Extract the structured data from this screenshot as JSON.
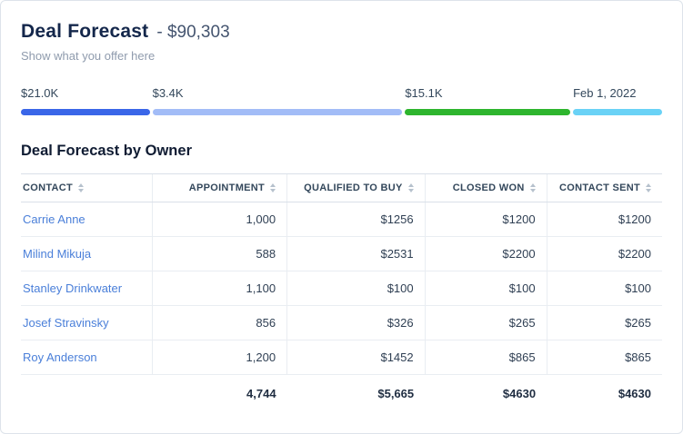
{
  "header": {
    "title": "Deal Forecast",
    "amount": "- $90,303",
    "subtitle": "Show what you offer here"
  },
  "progress": {
    "segments": [
      {
        "label": "$21.0K",
        "color": "#3a66e8",
        "width_pct": 20.1
      },
      {
        "label": "$3.4K",
        "color": "#a2bcf7",
        "width_pct": 39.0
      },
      {
        "label": "$15.1K",
        "color": "#2eb52e",
        "width_pct": 25.8
      },
      {
        "label": "Feb 1, 2022",
        "color": "#6ad2f6",
        "width_pct": 13.9
      }
    ]
  },
  "table": {
    "section_title": "Deal Forecast by Owner",
    "columns": [
      "CONTACT",
      "APPOINTMENT",
      "QUALIFIED TO BUY",
      "CLOSED WON",
      "CONTACT SENT"
    ],
    "rows": [
      [
        "Carrie Anne",
        "1,000",
        "$1256",
        "$1200",
        "$1200"
      ],
      [
        "Milind Mikuja",
        "588",
        "$2531",
        "$2200",
        "$2200"
      ],
      [
        "Stanley Drinkwater",
        "1,100",
        "$100",
        "$100",
        "$100"
      ],
      [
        "Josef Stravinsky",
        "856",
        "$326",
        "$265",
        "$265"
      ],
      [
        "Roy Anderson",
        "1,200",
        "$1452",
        "$865",
        "$865"
      ]
    ],
    "totals": [
      "",
      "4,744",
      "$5,665",
      "$4630",
      "$4630"
    ]
  }
}
